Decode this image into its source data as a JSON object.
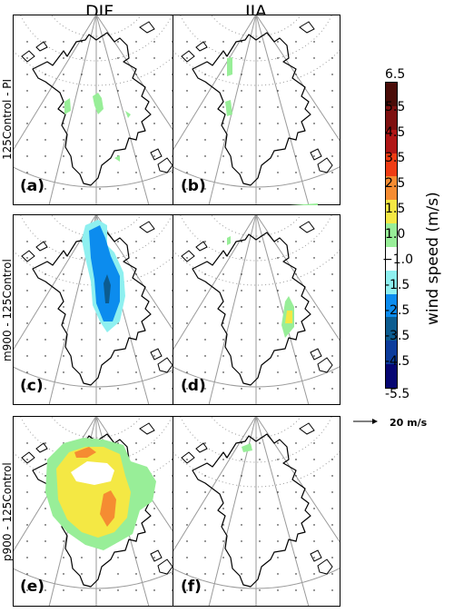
{
  "columns": {
    "djf": "DJF",
    "jja": "JJA"
  },
  "rows": [
    "125Control - PI",
    "m900 - 125Control",
    "p900 - 125Control"
  ],
  "panels": [
    "(a)",
    "(b)",
    "(c)",
    "(d)",
    "(e)",
    "(f)"
  ],
  "colorbar": {
    "title": "wind speed (m/s)",
    "ticks": [
      "6.5",
      "5.5",
      "4.5",
      "3.5",
      "2.5",
      "1.5",
      "1.0",
      "−1.0",
      "-1.5",
      "-2.5",
      "-3.5",
      "-4.5",
      "-5.5"
    ],
    "colors": [
      "#4a0c08",
      "#7e1010",
      "#b01616",
      "#ee3c14",
      "#f58c32",
      "#f4e844",
      "#98ee98",
      "#ffffff",
      "#8ef0f0",
      "#0c8cee",
      "#0c5c90",
      "#0c3c9c",
      "#060672"
    ]
  },
  "reference_vector": "20 m/s",
  "map_colors": {
    "coast": "#000000",
    "grid": "#9a9a9a",
    "frame": "#000000"
  }
}
